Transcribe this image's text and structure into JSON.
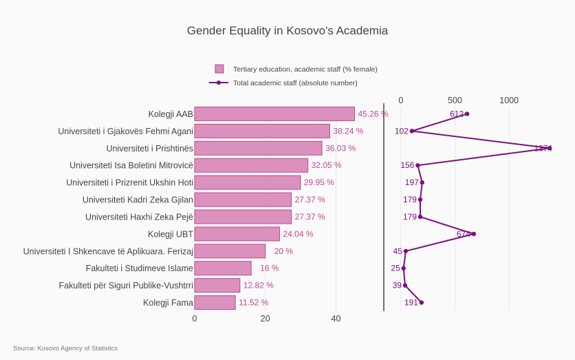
{
  "colors": {
    "bar_fill": "#d98bbb",
    "bar_stroke": "#c0468f",
    "bar_label": "#c0468f",
    "line": "#7b0f7f",
    "grid": "#e8e8e8",
    "axis": "#444444",
    "background": "#fafafa"
  },
  "source": "Source: Kosovo Agency of Statistics",
  "chart_data": {
    "type": "bar+line",
    "title": "Gender Equality in Kosovo's Academia",
    "categories": [
      "Kolegji AAB",
      "Universiteti i Gjakovës Fehmi Agani",
      "Universiteti i Prishtinës",
      "Universiteti Isa Boletini Mitrovicë",
      "Universiteti i Prizrenit Ukshin Hoti",
      "Universiteti Kadri Zeka Gjilan",
      "Universiteti Haxhi Zeka Pejë",
      "Kolegji UBT",
      "Universiteti I Shkencave të Aplikuara. Ferizaj",
      "Fakulteti i Studimeve Islame",
      "Fakulteti për Siguri Publike-Vushtrri",
      "Kolegji Fama"
    ],
    "series": [
      {
        "name": "Tertiary education, academic staff (% female)",
        "type": "bar",
        "values": [
          45.26,
          38.24,
          36.03,
          32.05,
          29.95,
          27.37,
          27.37,
          24.04,
          20,
          16,
          12.82,
          11.52
        ],
        "labels": [
          "45.26 %",
          "38.24 %",
          "36.03 %",
          "32.05 %",
          "29.95 %",
          "27.37 %",
          "27.37 %",
          "24.04 %",
          "20 %",
          "16 %",
          "12.82 %",
          "11.52 %"
        ],
        "xlim": [
          0,
          51
        ],
        "ticks": [
          0,
          20,
          40
        ],
        "tick_labels": [
          "0",
          "20",
          "40"
        ]
      },
      {
        "name": "Total academic staff (absolute number)",
        "type": "line",
        "values": [
          612,
          102,
          1374,
          156,
          197,
          179,
          179,
          674,
          45,
          25,
          39,
          191
        ],
        "labels": [
          "612",
          "102",
          "1374",
          "156",
          "197",
          "179",
          "179",
          "674",
          "45",
          "25",
          "39",
          "191"
        ],
        "xlim": [
          -145,
          1380
        ],
        "ticks": [
          0,
          500,
          1000
        ],
        "tick_labels": [
          "0",
          "500",
          "1000"
        ]
      }
    ],
    "legend_position": "top-center"
  }
}
